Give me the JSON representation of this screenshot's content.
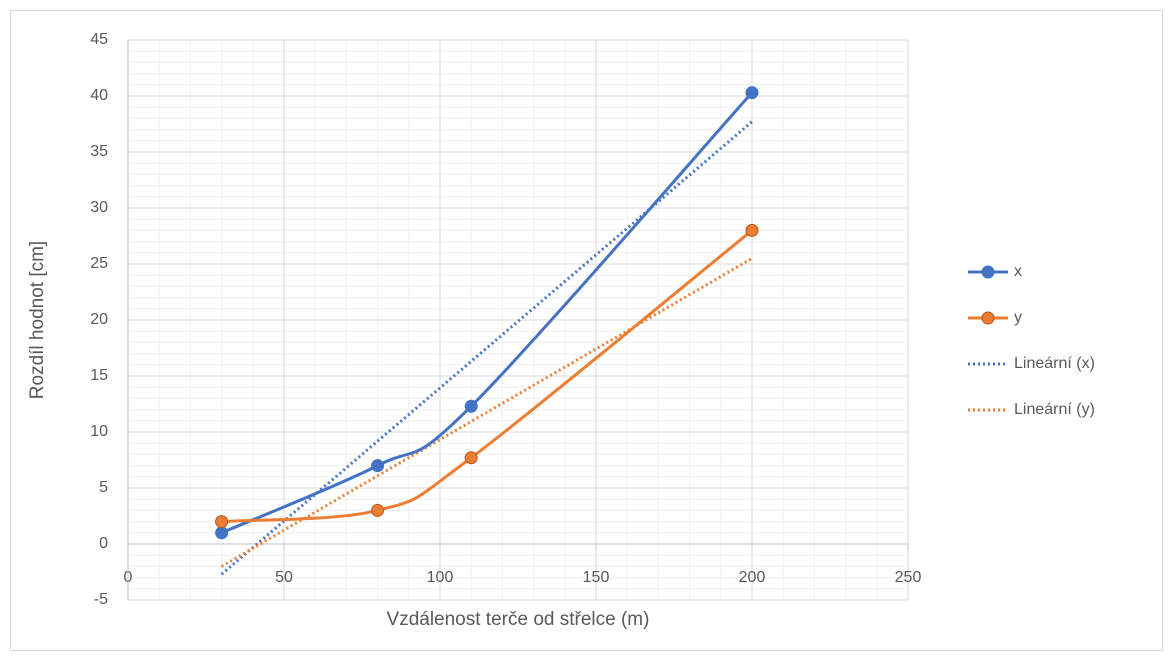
{
  "chart_data": {
    "type": "scatter",
    "xlabel": "Vzdálenost terče od střelce (m)",
    "ylabel": "Rozdíl hodnot  [cm]",
    "x": [
      30,
      80,
      110,
      200
    ],
    "series": [
      {
        "name": "x",
        "color": "#4472c4",
        "values": [
          1,
          7,
          12.3,
          40.3
        ]
      },
      {
        "name": "y",
        "color": "#ed7d31",
        "values": [
          2,
          3,
          7.7,
          28
        ]
      }
    ],
    "trendlines": [
      {
        "name": "Lineární (x)",
        "color": "#4472c4",
        "x": [
          30,
          200
        ],
        "values": [
          -2.7,
          37.7
        ]
      },
      {
        "name": "Lineární (y)",
        "color": "#ed7d31",
        "x": [
          30,
          200
        ],
        "values": [
          -2,
          25.5
        ]
      }
    ],
    "smooth": true,
    "xlim": [
      0,
      250
    ],
    "xticks": [
      0,
      50,
      100,
      150,
      200,
      250
    ],
    "ylim": [
      -5,
      45
    ],
    "yticks": [
      -5,
      0,
      5,
      10,
      15,
      20,
      25,
      30,
      35,
      40,
      45
    ],
    "grid": true,
    "minor_grid": true,
    "legend": "right"
  }
}
